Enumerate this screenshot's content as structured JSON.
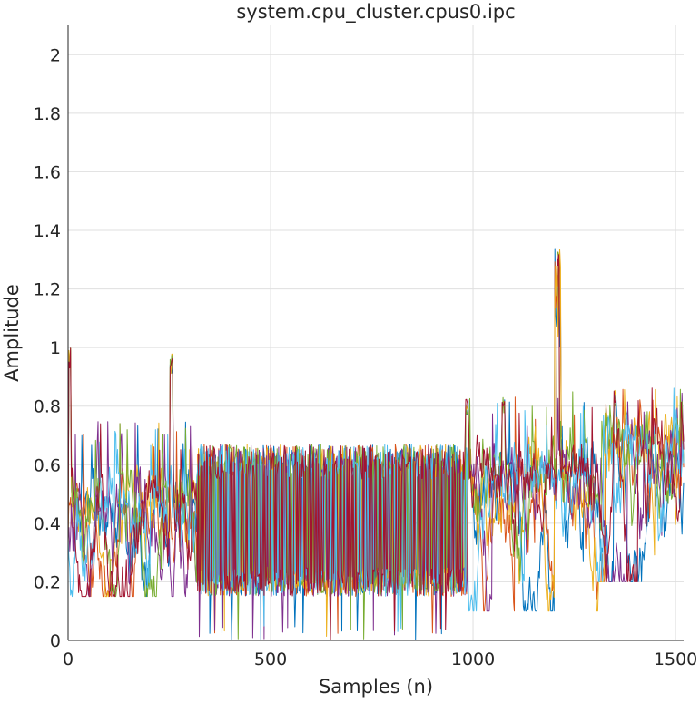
{
  "chart_data": {
    "type": "line",
    "title": "system.cpu_cluster.cpus0.ipc",
    "xlabel": "Samples (n)",
    "ylabel": "Amplitude",
    "xlim": [
      0,
      1520
    ],
    "ylim": [
      0,
      2.1
    ],
    "xticks": [
      0,
      500,
      1000,
      1500
    ],
    "yticks": [
      0,
      0.2,
      0.4,
      0.6,
      0.8,
      1,
      1.2,
      1.4,
      1.6,
      1.8,
      2
    ],
    "xtick_labels": [
      "0",
      "500",
      "1000",
      "1500"
    ],
    "ytick_labels": [
      "0",
      "0.2",
      "0.4",
      "0.6",
      "0.8",
      "1",
      "1.2",
      "1.4",
      "1.6",
      "1.8",
      "2"
    ],
    "grid": true,
    "legend": "none",
    "series_count": 7,
    "series_colors": [
      "#0072BD",
      "#D95319",
      "#EDB120",
      "#7E2F8E",
      "#77AC30",
      "#4DBEEE",
      "#A2142F"
    ],
    "segments": [
      {
        "x": [
          0,
          320
        ],
        "level": [
          0.15,
          0.45
        ],
        "peak": 0.75
      },
      {
        "x": [
          320,
          990
        ],
        "level": [
          0.15,
          0.65
        ],
        "peak": 0.7
      },
      {
        "x": [
          990,
          1310
        ],
        "level": [
          0.1,
          0.55
        ],
        "peak": 0.85
      },
      {
        "x": [
          1310,
          1520
        ],
        "level": [
          0.2,
          0.65
        ],
        "peak": 0.87
      }
    ],
    "annotated_peaks": [
      {
        "x": 4,
        "y": 1.0
      },
      {
        "x": 255,
        "y": 0.98
      },
      {
        "x": 985,
        "y": 0.83
      },
      {
        "x": 1075,
        "y": 0.83
      },
      {
        "x": 1210,
        "y": 1.34
      },
      {
        "x": 1350,
        "y": 0.86
      }
    ]
  }
}
